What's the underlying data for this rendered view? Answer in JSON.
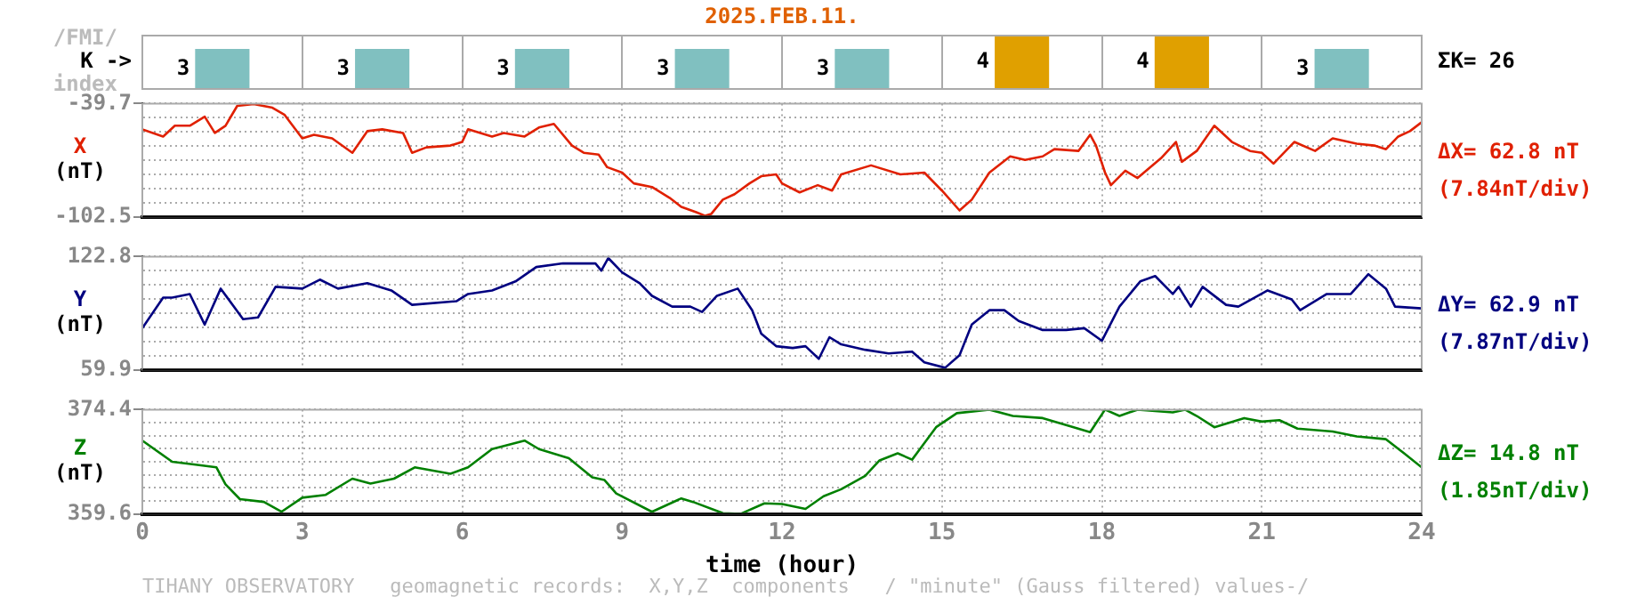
{
  "chart_data": [
    {
      "type": "bar",
      "title": "2025.FEB.11.",
      "ylabel": "K ->",
      "categories": [
        null,
        null,
        null,
        null,
        null,
        null,
        null,
        null
      ],
      "values": [
        3,
        3,
        3,
        3,
        3,
        4,
        4,
        3
      ],
      "colors": [
        "#80c0c0",
        "#80c0c0",
        "#80c0c0",
        "#80c0c0",
        "#80c0c0",
        "#e0a000",
        "#e0a000",
        "#80c0c0"
      ],
      "data_labels": true,
      "tick_labels": false,
      "grid": "x",
      "annotations": [
        "/FMI/",
        "index",
        "ΣK= 26"
      ]
    },
    {
      "type": "line",
      "ylabel": "(nT)",
      "xlim": [
        0,
        24
      ],
      "xticks": [
        0,
        3,
        6,
        9,
        12,
        15,
        18,
        21,
        24
      ],
      "ylim": [
        -102.5,
        -39.7
      ],
      "yticks": [
        -39.7,
        {
          "value": -47.55,
          "label": null
        },
        {
          "value": -55.4,
          "label": null
        },
        {
          "value": -63.25,
          "label": null
        },
        {
          "value": -71.1,
          "label": null
        },
        {
          "value": -78.95,
          "label": null
        },
        {
          "value": -86.8,
          "label": null
        },
        {
          "value": -94.65,
          "label": null
        },
        -102.5
      ],
      "tick_labels": "y",
      "grid": true,
      "marker": "none",
      "line_style": "solid",
      "annotations": [
        "ΔX= 62.8 nT",
        "(7.84nT/div)"
      ],
      "series": [
        {
          "name": "X",
          "color": "#e02000",
          "x": [
            0,
            0.39,
            0.61,
            0.89,
            1.17,
            1.36,
            1.56,
            1.78,
            2.09,
            2.44,
            2.67,
            3.0,
            3.22,
            3.56,
            3.94,
            4.22,
            4.5,
            4.89,
            5.06,
            5.33,
            5.78,
            6.0,
            6.11,
            6.56,
            6.78,
            7.17,
            7.44,
            7.72,
            8.06,
            8.28,
            8.56,
            8.72,
            9.0,
            9.22,
            9.56,
            9.89,
            10.11,
            10.39,
            10.56,
            10.67,
            10.89,
            11.11,
            11.39,
            11.61,
            11.89,
            12.0,
            12.33,
            12.67,
            12.94,
            13.11,
            13.67,
            14.22,
            14.67,
            15.0,
            15.33,
            15.56,
            15.89,
            16.28,
            16.56,
            16.89,
            17.11,
            17.56,
            17.78,
            17.89,
            18.06,
            18.17,
            18.44,
            18.67,
            19.11,
            19.39,
            19.5,
            19.78,
            20.11,
            20.44,
            20.78,
            21.0,
            21.22,
            21.61,
            22.0,
            22.33,
            22.78,
            23.11,
            23.33,
            23.56,
            23.78,
            24.0
          ],
          "values": [
            -54,
            -58,
            -52,
            -52,
            -47,
            -56,
            -52,
            -41,
            -40,
            -42,
            -46,
            -59,
            -57,
            -59,
            -67,
            -55,
            -54,
            -56,
            -67,
            -64,
            -63,
            -61,
            -54,
            -58,
            -56,
            -58,
            -53,
            -51,
            -63,
            -67,
            -68,
            -75,
            -78,
            -84,
            -86,
            -92,
            -97,
            -100,
            -102,
            -101,
            -93,
            -90,
            -84,
            -80,
            -79,
            -84,
            -89,
            -85,
            -88,
            -79,
            -74,
            -79,
            -78,
            -88,
            -99,
            -93,
            -78,
            -69,
            -71,
            -69,
            -65,
            -66,
            -57,
            -63,
            -78,
            -85,
            -77,
            -81,
            -70,
            -61,
            -72,
            -66,
            -52,
            -61,
            -66,
            -67,
            -73,
            -61,
            -66,
            -59,
            -62,
            -63,
            -65,
            -58,
            -55,
            -50
          ]
        }
      ]
    },
    {
      "type": "line",
      "ylabel": "(nT)",
      "xlim": [
        0,
        24
      ],
      "xticks": [
        0,
        3,
        6,
        9,
        12,
        15,
        18,
        21,
        24
      ],
      "ylim": [
        59.9,
        122.8
      ],
      "yticks": [
        122.8,
        {
          "value": 114.94,
          "label": null
        },
        {
          "value": 107.08,
          "label": null
        },
        {
          "value": 99.21,
          "label": null
        },
        {
          "value": 91.35,
          "label": null
        },
        {
          "value": 83.49,
          "label": null
        },
        {
          "value": 75.63,
          "label": null
        },
        {
          "value": 67.76,
          "label": null
        },
        59.9
      ],
      "tick_labels": "y",
      "grid": true,
      "marker": "none",
      "line_style": "solid",
      "annotations": [
        "ΔY= 62.9 nT",
        "(7.87nT/div)"
      ],
      "series": [
        {
          "name": "Y",
          "color": "#000080",
          "x": [
            0,
            0.39,
            0.56,
            0.89,
            1.17,
            1.47,
            1.89,
            2.17,
            2.5,
            3.0,
            3.33,
            3.67,
            4.22,
            4.67,
            5.06,
            5.89,
            6.11,
            6.56,
            7.0,
            7.39,
            7.89,
            8.5,
            8.61,
            8.74,
            9.0,
            9.33,
            9.56,
            9.94,
            10.28,
            10.5,
            10.78,
            11.17,
            11.44,
            11.61,
            11.89,
            12.2,
            12.44,
            12.69,
            12.89,
            13.11,
            13.56,
            14.0,
            14.44,
            14.67,
            15.06,
            15.33,
            15.56,
            15.89,
            16.17,
            16.44,
            16.89,
            17.33,
            17.67,
            18.0,
            18.33,
            18.72,
            19.0,
            19.33,
            19.44,
            19.67,
            19.89,
            20.33,
            20.56,
            21.11,
            21.56,
            21.72,
            22.22,
            22.67,
            23.0,
            23.33,
            23.5,
            24.0
          ],
          "values": [
            83,
            100,
            100,
            102,
            85,
            105,
            88,
            89,
            106,
            105,
            110,
            105,
            108,
            104,
            96,
            98,
            102,
            104,
            109,
            117,
            119,
            119,
            115,
            122,
            114,
            108,
            101,
            95,
            95,
            92,
            101,
            105,
            93,
            80,
            73,
            72,
            73,
            66,
            78,
            74,
            71,
            69,
            70,
            64,
            61,
            68,
            85,
            93,
            93,
            87,
            82,
            82,
            83,
            76,
            95,
            109,
            112,
            102,
            106,
            95,
            106,
            96,
            95,
            104,
            99,
            93,
            102,
            102,
            113,
            105,
            95,
            94
          ]
        }
      ]
    },
    {
      "type": "line",
      "ylabel": "(nT)",
      "xlabel": "time (hour)",
      "xlim": [
        0,
        24
      ],
      "xticks": [
        0,
        3,
        6,
        9,
        12,
        15,
        18,
        21,
        24
      ],
      "ylim": [
        359.6,
        374.4
      ],
      "yticks": [
        374.4,
        {
          "value": 372.55,
          "label": null
        },
        {
          "value": 370.7,
          "label": null
        },
        {
          "value": 368.85,
          "label": null
        },
        {
          "value": 367.0,
          "label": null
        },
        {
          "value": 365.15,
          "label": null
        },
        {
          "value": 363.3,
          "label": null
        },
        {
          "value": 361.45,
          "label": null
        },
        359.6
      ],
      "grid": true,
      "marker": "none",
      "line_style": "solid",
      "annotations": [
        "ΔZ= 14.8 nT",
        "(1.85nT/div)",
        "TIHANY OBSERVATORY   geomagnetic records:  X,Y,Z  components   / \"minute\" (Gauss filtered) values-/"
      ],
      "series": [
        {
          "name": "Z",
          "color": "#008000",
          "x": [
            0,
            0.56,
            1.0,
            1.39,
            1.56,
            1.83,
            2.28,
            2.61,
            3.0,
            3.44,
            3.94,
            4.28,
            4.72,
            5.11,
            5.78,
            6.11,
            6.56,
            7.17,
            7.44,
            8.0,
            8.44,
            8.67,
            8.89,
            9.56,
            10.11,
            10.33,
            10.89,
            11.22,
            11.67,
            12.0,
            12.44,
            12.78,
            13.11,
            13.56,
            13.83,
            14.17,
            14.44,
            14.89,
            15.28,
            15.89,
            16.33,
            16.89,
            17.33,
            17.78,
            18.06,
            18.33,
            18.67,
            19.33,
            19.56,
            19.78,
            20.11,
            20.67,
            21.0,
            21.33,
            21.67,
            22.33,
            22.78,
            23.33,
            23.67,
            24.0
          ],
          "values": [
            370.0,
            367.0,
            366.6,
            366.2,
            363.8,
            361.7,
            361.3,
            359.9,
            361.9,
            362.3,
            364.6,
            363.9,
            364.6,
            366.2,
            365.3,
            366.2,
            368.8,
            370.0,
            368.8,
            367.5,
            364.8,
            364.4,
            362.5,
            359.9,
            361.8,
            361.3,
            359.7,
            359.6,
            361.1,
            361.0,
            360.3,
            362.1,
            363.1,
            365.0,
            367.2,
            368.2,
            367.3,
            371.9,
            373.9,
            374.4,
            373.5,
            373.2,
            372.2,
            371.2,
            374.4,
            373.5,
            374.4,
            374.0,
            374.4,
            373.5,
            371.9,
            373.2,
            372.7,
            372.9,
            371.7,
            371.3,
            370.6,
            370.2,
            368.2,
            366.2
          ]
        }
      ]
    }
  ]
}
